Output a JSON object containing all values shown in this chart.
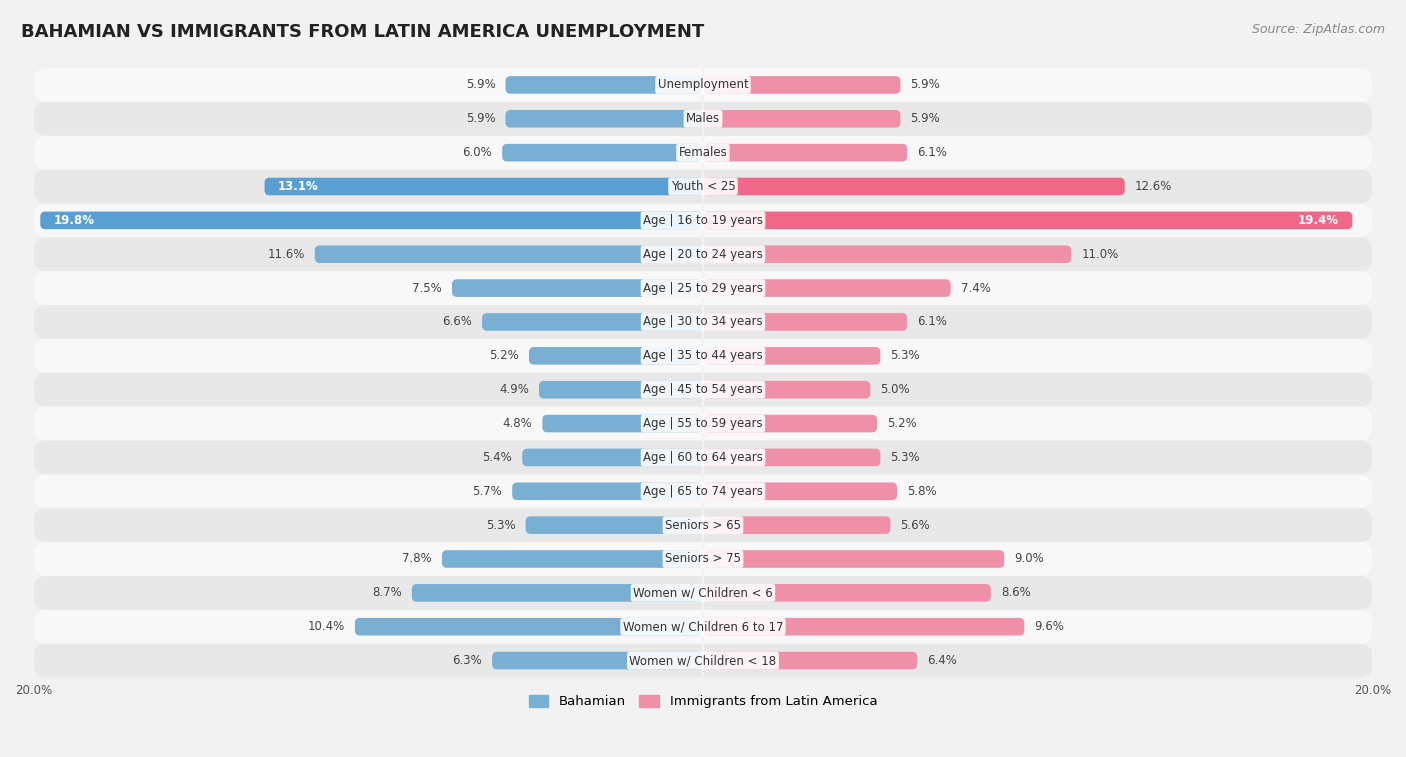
{
  "title": "BAHAMIAN VS IMMIGRANTS FROM LATIN AMERICA UNEMPLOYMENT",
  "source": "Source: ZipAtlas.com",
  "categories": [
    "Unemployment",
    "Males",
    "Females",
    "Youth < 25",
    "Age | 16 to 19 years",
    "Age | 20 to 24 years",
    "Age | 25 to 29 years",
    "Age | 30 to 34 years",
    "Age | 35 to 44 years",
    "Age | 45 to 54 years",
    "Age | 55 to 59 years",
    "Age | 60 to 64 years",
    "Age | 65 to 74 years",
    "Seniors > 65",
    "Seniors > 75",
    "Women w/ Children < 6",
    "Women w/ Children 6 to 17",
    "Women w/ Children < 18"
  ],
  "bahamian": [
    5.9,
    5.9,
    6.0,
    13.1,
    19.8,
    11.6,
    7.5,
    6.6,
    5.2,
    4.9,
    4.8,
    5.4,
    5.7,
    5.3,
    7.8,
    8.7,
    10.4,
    6.3
  ],
  "immigrants": [
    5.9,
    5.9,
    6.1,
    12.6,
    19.4,
    11.0,
    7.4,
    6.1,
    5.3,
    5.0,
    5.2,
    5.3,
    5.8,
    5.6,
    9.0,
    8.6,
    9.6,
    6.4
  ],
  "bahamian_color": "#7aafd4",
  "immigrant_color": "#f090a8",
  "bahamian_color_bold": "#5a9fd4",
  "immigrant_color_bold": "#f06888",
  "axis_limit": 20.0,
  "background_color": "#f2f2f2",
  "row_colors": [
    "#e8e8e8",
    "#f8f8f8"
  ],
  "legend_bahamian": "Bahamian",
  "legend_immigrant": "Immigrants from Latin America",
  "title_fontsize": 13,
  "source_fontsize": 9,
  "label_fontsize": 8.5,
  "bar_height": 0.52
}
